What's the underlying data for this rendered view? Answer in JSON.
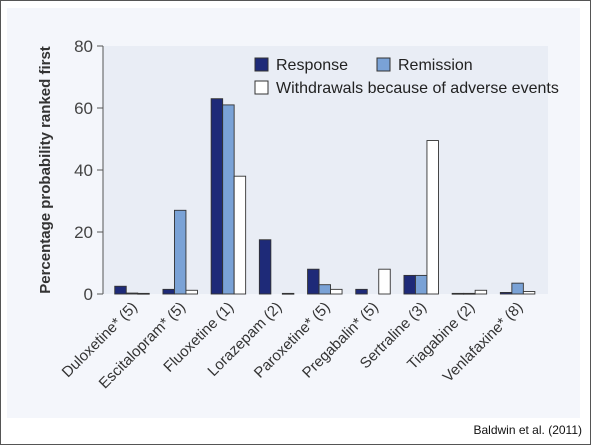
{
  "colors": {
    "response": "#1e2a78",
    "remission": "#7aa2d6",
    "withdrawals": "#ffffff",
    "bar_stroke": "#333333",
    "plot_bg": "#e9edf5"
  },
  "citation": "Baldwin et al. (2011)",
  "chart_data": {
    "type": "bar",
    "ylabel": "Percentage probability ranked first",
    "xlabel": "",
    "ylim": [
      0,
      80
    ],
    "yticks": [
      0,
      20,
      40,
      60,
      80
    ],
    "grid": false,
    "legend_position": "top-right",
    "categories": [
      "Duloxetine* (5)",
      "Escitalopram* (5)",
      "Fluoxetine (1)",
      "Lorazepam (2)",
      "Paroxetine* (5)",
      "Pregabalin* (5)",
      "Sertraline (3)",
      "Tiagabine (2)",
      "Venlafaxine* (8)"
    ],
    "series": [
      {
        "name": "Response",
        "values": [
          2.5,
          1.5,
          63,
          17.5,
          8,
          1.5,
          6,
          0.2,
          0.5
        ]
      },
      {
        "name": "Remission",
        "values": [
          0.3,
          27,
          61,
          0,
          3,
          0,
          6,
          0.2,
          3.5
        ]
      },
      {
        "name": "Withdrawals because of adverse events",
        "values": [
          0.2,
          1.2,
          38,
          0.2,
          1.5,
          8,
          49.5,
          1.2,
          0.8
        ]
      }
    ]
  }
}
